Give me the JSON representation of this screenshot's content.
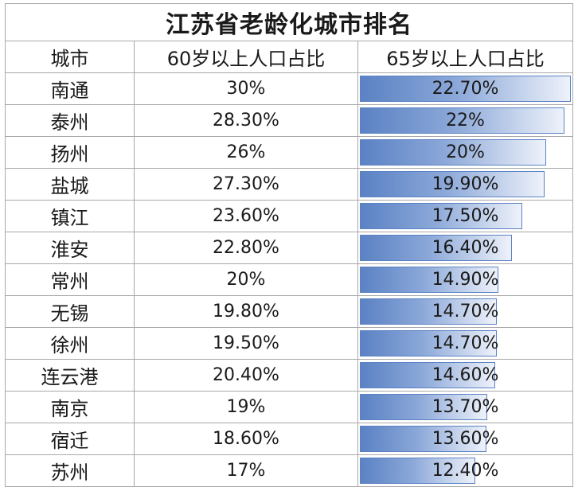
{
  "chart_data": {
    "type": "table",
    "title": "江苏省老龄化城市排名",
    "columns": [
      "城市",
      "60岁以上人口占比",
      "65岁以上人口占比"
    ],
    "rows": [
      {
        "city": "南通",
        "pct60": "30%",
        "pct65": "22.70%",
        "v65": 22.7
      },
      {
        "city": "泰州",
        "pct60": "28.30%",
        "pct65": "22%",
        "v65": 22.0
      },
      {
        "city": "扬州",
        "pct60": "26%",
        "pct65": "20%",
        "v65": 20.0
      },
      {
        "city": "盐城",
        "pct60": "27.30%",
        "pct65": "19.90%",
        "v65": 19.9
      },
      {
        "city": "镇江",
        "pct60": "23.60%",
        "pct65": "17.50%",
        "v65": 17.5
      },
      {
        "city": "淮安",
        "pct60": "22.80%",
        "pct65": "16.40%",
        "v65": 16.4
      },
      {
        "city": "常州",
        "pct60": "20%",
        "pct65": "14.90%",
        "v65": 14.9
      },
      {
        "city": "无锡",
        "pct60": "19.80%",
        "pct65": "14.70%",
        "v65": 14.7
      },
      {
        "city": "徐州",
        "pct60": "19.50%",
        "pct65": "14.70%",
        "v65": 14.7
      },
      {
        "city": "连云港",
        "pct60": "20.40%",
        "pct65": "14.60%",
        "v65": 14.6
      },
      {
        "city": "南京",
        "pct60": "19%",
        "pct65": "13.70%",
        "v65": 13.7
      },
      {
        "city": "宿迁",
        "pct60": "18.60%",
        "pct65": "13.60%",
        "v65": 13.6
      },
      {
        "city": "苏州",
        "pct60": "17%",
        "pct65": "12.40%",
        "v65": 12.4
      }
    ],
    "databar_max": 22.7,
    "databar_color": "#5b82c4"
  }
}
